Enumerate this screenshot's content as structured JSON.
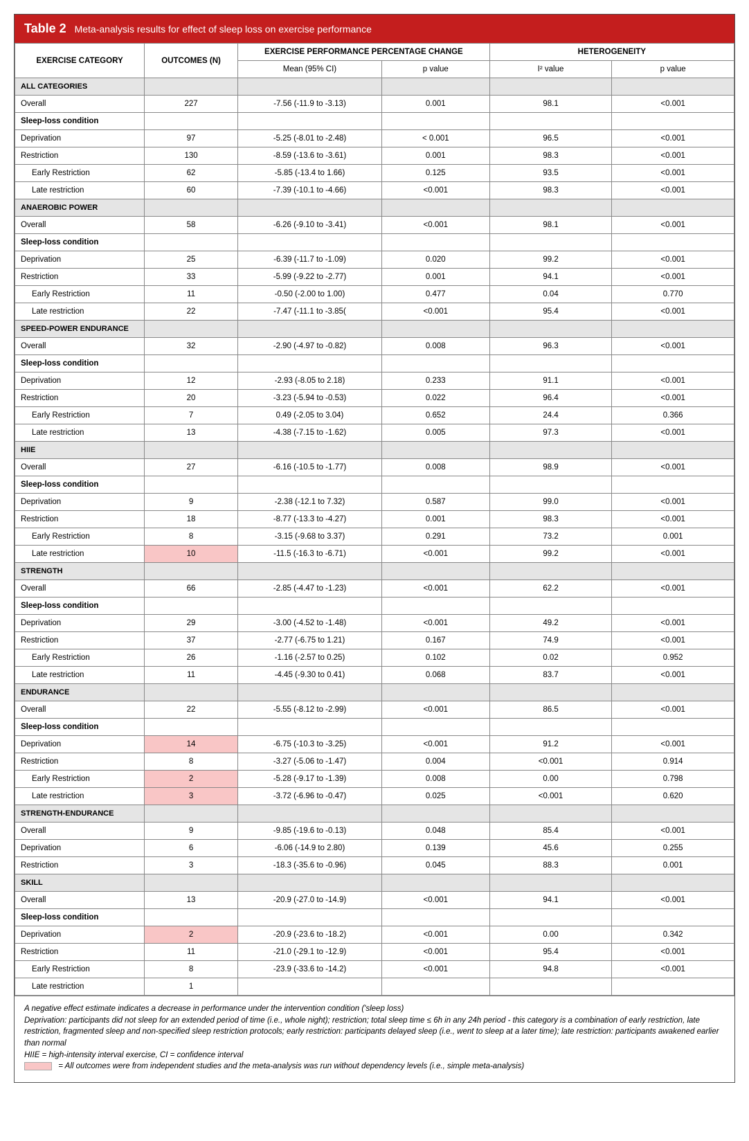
{
  "title_num": "Table 2",
  "title_text": "Meta-analysis results for effect of sleep loss on exercise performance",
  "headers": {
    "exercise_category": "EXERCISE CATEGORY",
    "outcomes_n": "OUTCOMES (N)",
    "perf_change": "EXERCISE PERFORMANCE PERCENTAGE CHANGE",
    "heterogeneity": "HETEROGENEITY",
    "mean_ci": "Mean (95% CI)",
    "p_value": "p value",
    "i2_value": "I² value"
  },
  "colors": {
    "header_bg": "#c41e1e",
    "section_bg": "#e5e5e5",
    "highlight_bg": "#f9c6c6",
    "border": "#888"
  },
  "rows": [
    {
      "type": "section",
      "label": "ALL CATEGORIES"
    },
    {
      "type": "data",
      "label": "Overall",
      "n": "227",
      "mean": "-7.56 (-11.9 to -3.13)",
      "p": "0.001",
      "i2": "98.1",
      "p2": "<0.001"
    },
    {
      "type": "bold",
      "label": "Sleep-loss condition"
    },
    {
      "type": "data",
      "label": "Deprivation",
      "n": "97",
      "mean": "-5.25 (-8.01 to -2.48)",
      "p": "< 0.001",
      "i2": "96.5",
      "p2": "<0.001"
    },
    {
      "type": "data",
      "label": "Restriction",
      "n": "130",
      "mean": "-8.59 (-13.6 to -3.61)",
      "p": "0.001",
      "i2": "98.3",
      "p2": "<0.001"
    },
    {
      "type": "data",
      "indent": true,
      "label": "Early Restriction",
      "n": "62",
      "mean": "-5.85 (-13.4 to 1.66)",
      "p": "0.125",
      "i2": "93.5",
      "p2": "<0.001"
    },
    {
      "type": "data",
      "indent": true,
      "label": "Late restriction",
      "n": "60",
      "mean": "-7.39 (-10.1 to -4.66)",
      "p": "<0.001",
      "i2": "98.3",
      "p2": "<0.001"
    },
    {
      "type": "section",
      "label": "ANAEROBIC POWER"
    },
    {
      "type": "data",
      "label": "Overall",
      "n": "58",
      "mean": "-6.26 (-9.10 to -3.41)",
      "p": "<0.001",
      "i2": "98.1",
      "p2": "<0.001"
    },
    {
      "type": "bold",
      "label": "Sleep-loss condition"
    },
    {
      "type": "data",
      "label": "Deprivation",
      "n": "25",
      "mean": "-6.39 (-11.7 to -1.09)",
      "p": "0.020",
      "i2": "99.2",
      "p2": "<0.001"
    },
    {
      "type": "data",
      "label": "Restriction",
      "n": "33",
      "mean": "-5.99 (-9.22 to -2.77)",
      "p": "0.001",
      "i2": "94.1",
      "p2": "<0.001"
    },
    {
      "type": "data",
      "indent": true,
      "label": "Early Restriction",
      "n": "11",
      "mean": "-0.50 (-2.00 to 1.00)",
      "p": "0.477",
      "i2": "0.04",
      "p2": "0.770"
    },
    {
      "type": "data",
      "indent": true,
      "label": "Late restriction",
      "n": "22",
      "mean": "-7.47 (-11.1 to -3.85(",
      "p": "<0.001",
      "i2": "95.4",
      "p2": "<0.001"
    },
    {
      "type": "section",
      "label": "SPEED-POWER ENDURANCE"
    },
    {
      "type": "data",
      "label": "Overall",
      "n": "32",
      "mean": "-2.90 (-4.97 to -0.82)",
      "p": "0.008",
      "i2": "96.3",
      "p2": "<0.001"
    },
    {
      "type": "bold",
      "label": "Sleep-loss condition"
    },
    {
      "type": "data",
      "label": "Deprivation",
      "n": "12",
      "mean": "-2.93 (-8.05 to 2.18)",
      "p": "0.233",
      "i2": "91.1",
      "p2": "<0.001"
    },
    {
      "type": "data",
      "label": "Restriction",
      "n": "20",
      "mean": "-3.23 (-5.94 to -0.53)",
      "p": "0.022",
      "i2": "96.4",
      "p2": "<0.001"
    },
    {
      "type": "data",
      "indent": true,
      "label": "Early Restriction",
      "n": "7",
      "mean": "0.49 (-2.05 to 3.04)",
      "p": "0.652",
      "i2": "24.4",
      "p2": "0.366"
    },
    {
      "type": "data",
      "indent": true,
      "label": "Late restriction",
      "n": "13",
      "mean": "-4.38 (-7.15 to -1.62)",
      "p": "0.005",
      "i2": "97.3",
      "p2": "<0.001"
    },
    {
      "type": "section",
      "label": "HIIE"
    },
    {
      "type": "data",
      "label": "Overall",
      "n": "27",
      "mean": "-6.16 (-10.5 to -1.77)",
      "p": "0.008",
      "i2": "98.9",
      "p2": "<0.001"
    },
    {
      "type": "bold",
      "label": "Sleep-loss condition"
    },
    {
      "type": "data",
      "label": "Deprivation",
      "n": "9",
      "mean": "-2.38 (-12.1 to 7.32)",
      "p": "0.587",
      "i2": "99.0",
      "p2": "<0.001"
    },
    {
      "type": "data",
      "label": "Restriction",
      "n": "18",
      "mean": "-8.77 (-13.3 to -4.27)",
      "p": "0.001",
      "i2": "98.3",
      "p2": "<0.001"
    },
    {
      "type": "data",
      "indent": true,
      "label": "Early Restriction",
      "n": "8",
      "mean": "-3.15 (-9.68 to 3.37)",
      "p": "0.291",
      "i2": "73.2",
      "p2": "0.001"
    },
    {
      "type": "data",
      "indent": true,
      "label": "Late restriction",
      "n": "10",
      "n_hl": true,
      "mean": "-11.5 (-16.3 to -6.71)",
      "p": "<0.001",
      "i2": "99.2",
      "p2": "<0.001"
    },
    {
      "type": "section",
      "label": "STRENGTH"
    },
    {
      "type": "data",
      "label": "Overall",
      "n": "66",
      "mean": "-2.85 (-4.47 to -1.23)",
      "p": "<0.001",
      "i2": "62.2",
      "p2": "<0.001"
    },
    {
      "type": "bold",
      "label": "Sleep-loss condition"
    },
    {
      "type": "data",
      "label": "Deprivation",
      "n": "29",
      "mean": "-3.00 (-4.52 to -1.48)",
      "p": "<0.001",
      "i2": "49.2",
      "p2": "<0.001"
    },
    {
      "type": "data",
      "label": "Restriction",
      "n": "37",
      "mean": "-2.77 (-6.75 to 1.21)",
      "p": "0.167",
      "i2": "74.9",
      "p2": "<0.001"
    },
    {
      "type": "data",
      "indent": true,
      "label": "Early Restriction",
      "n": "26",
      "mean": "-1.16 (-2.57 to 0.25)",
      "p": "0.102",
      "i2": "0.02",
      "p2": "0.952"
    },
    {
      "type": "data",
      "indent": true,
      "label": "Late restriction",
      "n": "11",
      "mean": "-4.45 (-9.30 to 0.41)",
      "p": "0.068",
      "i2": "83.7",
      "p2": "<0.001"
    },
    {
      "type": "section",
      "label": "ENDURANCE"
    },
    {
      "type": "data",
      "label": "Overall",
      "n": "22",
      "mean": "-5.55 (-8.12 to -2.99)",
      "p": "<0.001",
      "i2": "86.5",
      "p2": "<0.001"
    },
    {
      "type": "bold",
      "label": "Sleep-loss condition"
    },
    {
      "type": "data",
      "label": "Deprivation",
      "n": "14",
      "n_hl": true,
      "mean": "-6.75 (-10.3 to -3.25)",
      "p": "<0.001",
      "i2": "91.2",
      "p2": "<0.001"
    },
    {
      "type": "data",
      "label": "Restriction",
      "n": "8",
      "mean": "-3.27 (-5.06 to -1.47)",
      "p": "0.004",
      "i2": "<0.001",
      "p2": "0.914"
    },
    {
      "type": "data",
      "indent": true,
      "label": "Early Restriction",
      "n": "2",
      "n_hl": true,
      "mean": "-5.28 (-9.17 to -1.39)",
      "p": "0.008",
      "i2": "0.00",
      "p2": "0.798"
    },
    {
      "type": "data",
      "indent": true,
      "label": "Late restriction",
      "n": "3",
      "n_hl": true,
      "mean": "-3.72 (-6.96 to -0.47)",
      "p": "0.025",
      "i2": "<0.001",
      "p2": "0.620"
    },
    {
      "type": "section",
      "label": "STRENGTH-ENDURANCE"
    },
    {
      "type": "data",
      "label": "Overall",
      "n": "9",
      "mean": "-9.85 (-19.6 to -0.13)",
      "p": "0.048",
      "i2": "85.4",
      "p2": "<0.001"
    },
    {
      "type": "data",
      "label": "Deprivation",
      "n": "6",
      "mean": "-6.06 (-14.9 to 2.80)",
      "p": "0.139",
      "i2": "45.6",
      "p2": "0.255"
    },
    {
      "type": "data",
      "label": "Restriction",
      "n": "3",
      "mean": "-18.3 (-35.6 to -0.96)",
      "p": "0.045",
      "i2": "88.3",
      "p2": "0.001"
    },
    {
      "type": "section",
      "label": "SKILL"
    },
    {
      "type": "data",
      "label": "Overall",
      "n": "13",
      "mean": "-20.9 (-27.0 to -14.9)",
      "p": "<0.001",
      "i2": "94.1",
      "p2": "<0.001"
    },
    {
      "type": "bold",
      "label": "Sleep-loss condition"
    },
    {
      "type": "data",
      "label": "Deprivation",
      "n": "2",
      "n_hl": true,
      "mean": "-20.9 (-23.6 to -18.2)",
      "p": "<0.001",
      "i2": "0.00",
      "p2": "0.342"
    },
    {
      "type": "data",
      "label": "Restriction",
      "n": "11",
      "mean": "-21.0 (-29.1 to -12.9)",
      "p": "<0.001",
      "i2": "95.4",
      "p2": "<0.001"
    },
    {
      "type": "data",
      "indent": true,
      "label": "Early Restriction",
      "n": "8",
      "mean": "-23.9 (-33.6 to -14.2)",
      "p": "<0.001",
      "i2": "94.8",
      "p2": "<0.001"
    },
    {
      "type": "data",
      "indent": true,
      "label": "Late restriction",
      "n": "1",
      "mean": "",
      "p": "",
      "i2": "",
      "p2": ""
    }
  ],
  "footnotes": {
    "line1": "A negative effect estimate indicates a decrease in performance under the intervention condition ('sleep loss)",
    "line2": "Deprivation: participants did not sleep for an extended period of time (i.e., whole night); restriction; total sleep time ≤ 6h in any 24h period - this category is a combination of early restriction, late restriction, fragmented sleep and non-specified sleep restriction protocols; early restriction: participants delayed sleep (i.e., went to sleep at a later time); late restriction: participants awakened earlier than normal",
    "line3": "HIIE = high-intensity interval exercise, CI = confidence interval",
    "legend_text": "= All outcomes were from independent studies and the meta-analysis was run without dependency levels (i.e., simple meta-analysis)"
  }
}
